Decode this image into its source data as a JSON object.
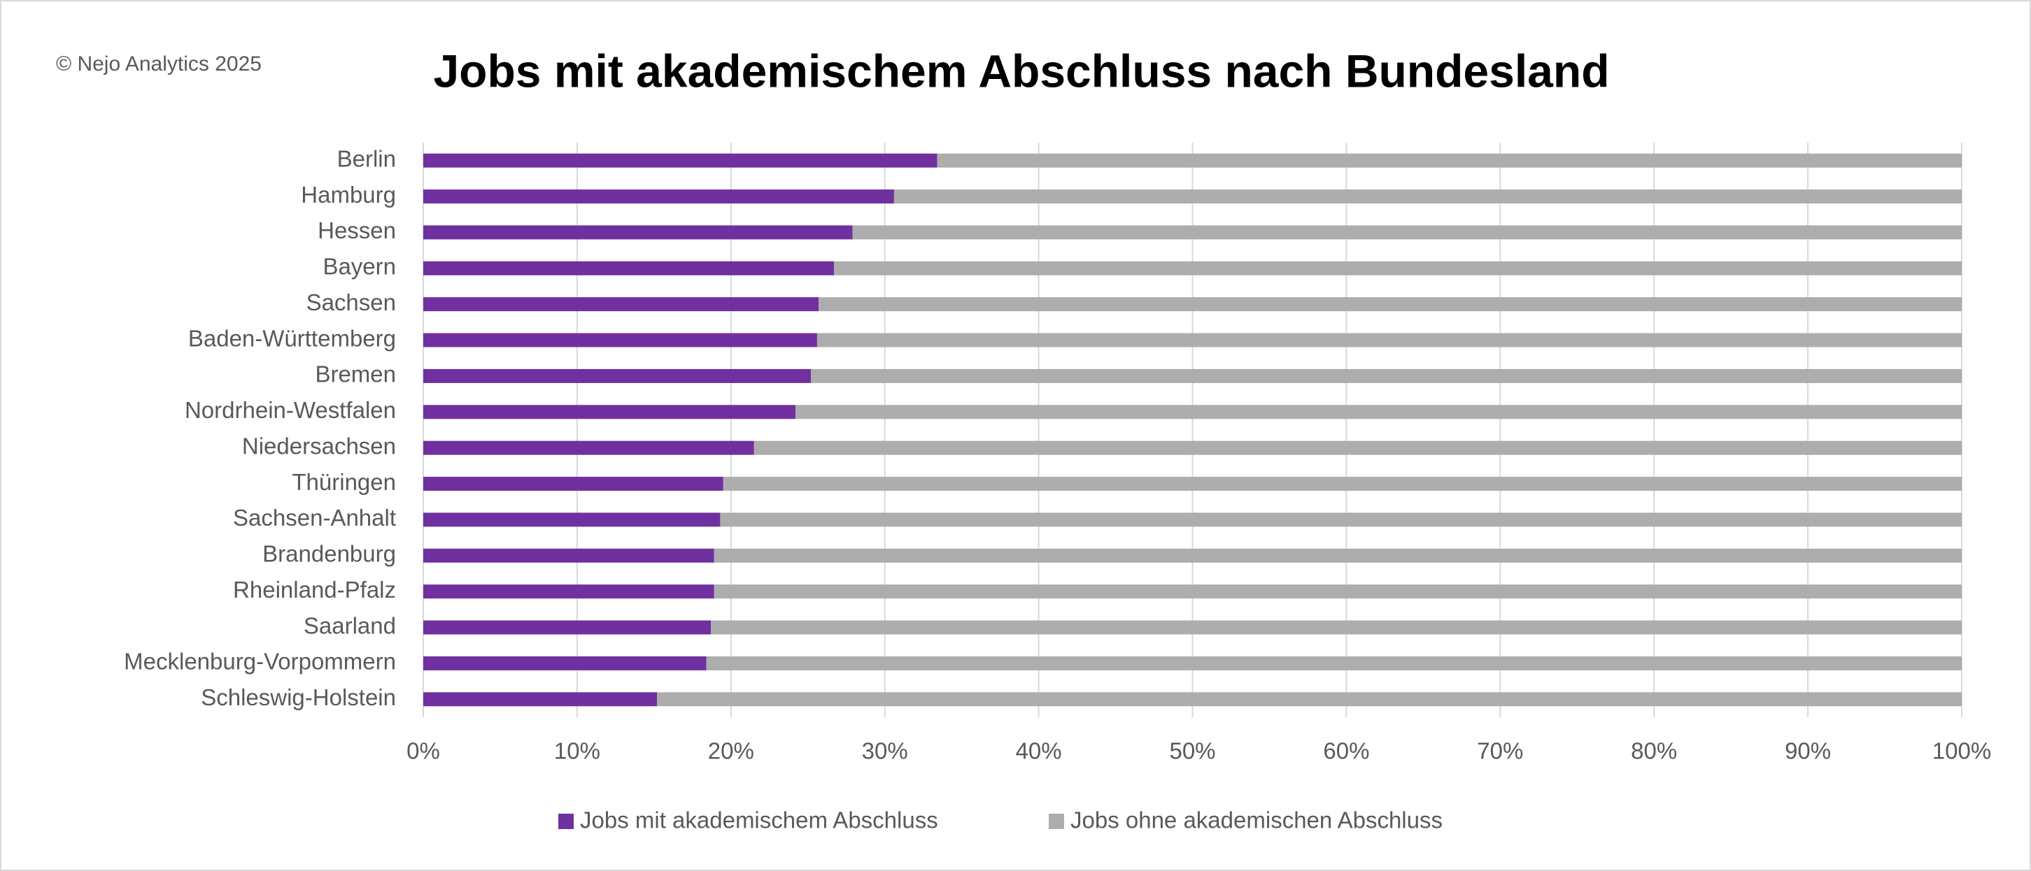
{
  "chart_data": {
    "type": "bar",
    "orientation": "horizontal",
    "stacked": true,
    "title": "Jobs mit akademischem Abschluss nach Bundesland",
    "copyright": "© Nejo Analytics 2025",
    "categories": [
      "Berlin",
      "Hamburg",
      "Hessen",
      "Bayern",
      "Sachsen",
      "Baden-Württemberg",
      "Bremen",
      "Nordrhein-Westfalen",
      "Niedersachsen",
      "Thüringen",
      "Sachsen-Anhalt",
      "Brandenburg",
      "Rheinland-Pfalz",
      "Saarland",
      "Mecklenburg-Vorpommern",
      "Schleswig-Holstein"
    ],
    "series": [
      {
        "name": "Jobs mit akademischem Abschluss",
        "color": "#7030a0",
        "values": [
          33.4,
          30.6,
          27.9,
          26.7,
          25.7,
          25.6,
          25.2,
          24.2,
          21.5,
          19.5,
          19.3,
          18.9,
          18.9,
          18.7,
          18.4,
          15.2
        ]
      },
      {
        "name": "Jobs ohne akademischen Abschluss",
        "color": "#adadad",
        "values": [
          66.6,
          69.4,
          72.1,
          73.3,
          74.3,
          74.4,
          74.8,
          75.8,
          78.5,
          80.5,
          80.7,
          81.1,
          81.1,
          81.3,
          81.6,
          84.8
        ]
      }
    ],
    "xlim": [
      0,
      100
    ],
    "xticks": [
      {
        "value": 0,
        "label": "0%"
      },
      {
        "value": 10,
        "label": "10%"
      },
      {
        "value": 20,
        "label": "20%"
      },
      {
        "value": 30,
        "label": "30%"
      },
      {
        "value": 40,
        "label": "40%"
      },
      {
        "value": 50,
        "label": "50%"
      },
      {
        "value": 60,
        "label": "60%"
      },
      {
        "value": 70,
        "label": "70%"
      },
      {
        "value": 80,
        "label": "80%"
      },
      {
        "value": 90,
        "label": "90%"
      },
      {
        "value": 100,
        "label": "100%"
      }
    ],
    "grid": true,
    "legend": "bottom"
  }
}
